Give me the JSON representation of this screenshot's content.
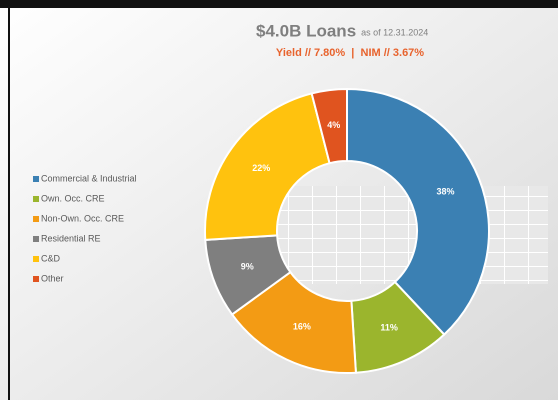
{
  "chart_data": {
    "type": "donut",
    "title": "$4.0B Loans",
    "title_note": "as of 12.31.2024",
    "subtitle": "Yield // 7.80%  |  NIM // 3.67%",
    "categories": [
      "Commercial & Industrial",
      "Own. Occ. CRE",
      "Non-Own. Occ. CRE",
      "Residential RE",
      "C&D",
      "Other"
    ],
    "values": [
      38,
      11,
      16,
      9,
      22,
      4
    ],
    "value_labels": [
      "38%",
      "11%",
      "16%",
      "9%",
      "22%",
      "4%"
    ],
    "colors": [
      "#3b80b3",
      "#9bb52d",
      "#f39b14",
      "#7f7f7f",
      "#ffc20e",
      "#e0541f"
    ],
    "legend": "left"
  }
}
